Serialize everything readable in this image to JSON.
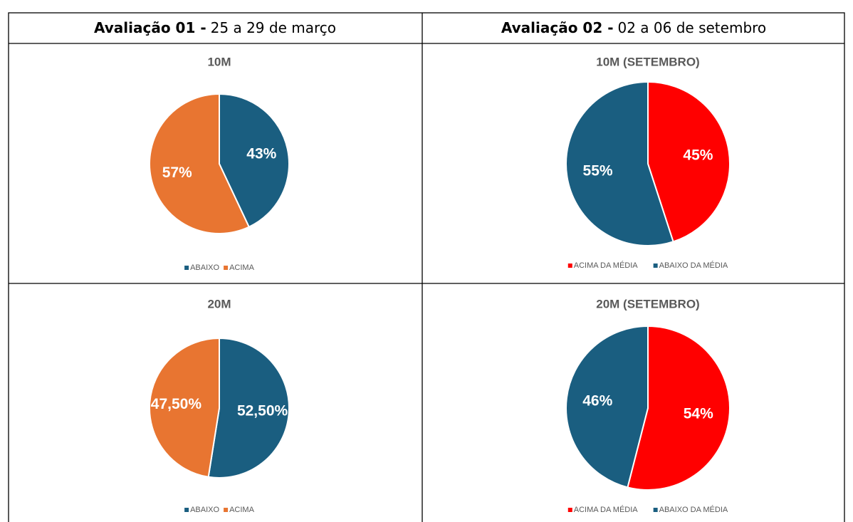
{
  "table": {
    "headers": [
      {
        "bold": "Avaliação 01 -",
        "text": "25 a 29 de março"
      },
      {
        "bold": "Avaliação 02 -",
        "text": "02 a 06 de setembro"
      }
    ]
  },
  "chart_data": [
    {
      "type": "pie",
      "title": "10M",
      "categories": [
        "ABAIXO",
        "ACIMA"
      ],
      "values": [
        43,
        57
      ],
      "value_labels": [
        "43%",
        "57%"
      ],
      "colors": [
        "#1a5e80",
        "#e87531"
      ]
    },
    {
      "type": "pie",
      "title": "10M (SETEMBRO)",
      "categories": [
        "ACIMA DA MÉDIA",
        "ABAIXO DA MÉDIA"
      ],
      "values": [
        45,
        55
      ],
      "value_labels": [
        "45%",
        "55%"
      ],
      "colors": [
        "#ff0000",
        "#1a5e80"
      ]
    },
    {
      "type": "pie",
      "title": "20M",
      "categories": [
        "ABAIXO",
        "ACIMA"
      ],
      "values": [
        52.5,
        47.5
      ],
      "value_labels": [
        "52,50%",
        "47,50%"
      ],
      "colors": [
        "#1a5e80",
        "#e87531"
      ]
    },
    {
      "type": "pie",
      "title": "20M (SETEMBRO)",
      "categories": [
        "ACIMA DA MÉDIA",
        "ABAIXO DA MÉDIA"
      ],
      "values": [
        54,
        46
      ],
      "value_labels": [
        "54%",
        "46%"
      ],
      "colors": [
        "#ff0000",
        "#1a5e80"
      ]
    }
  ]
}
